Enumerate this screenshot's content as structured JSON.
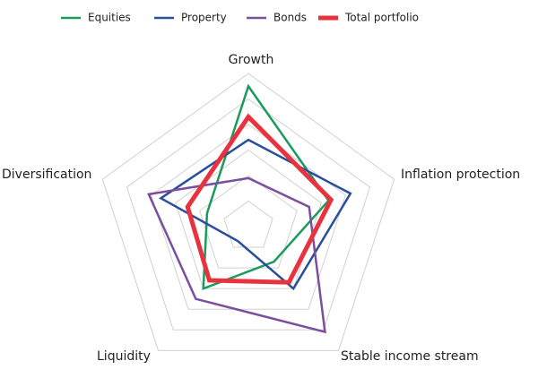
{
  "chart_data": {
    "type": "radar",
    "categories": [
      "Growth",
      "Inflation protection",
      "Stable income stream",
      "Liquidity",
      "Diversification"
    ],
    "series": [
      {
        "name": "Equities",
        "color": "#1a9a5c",
        "width": 2.5,
        "values": [
          5.5,
          3.3,
          1.7,
          3.0,
          1.7
        ]
      },
      {
        "name": "Property",
        "color": "#2a4f9a",
        "width": 2.5,
        "values": [
          3.4,
          4.2,
          3.0,
          0.7,
          3.6
        ]
      },
      {
        "name": "Bonds",
        "color": "#7b4fa0",
        "width": 2.5,
        "values": [
          1.9,
          2.5,
          5.1,
          3.5,
          4.1
        ]
      },
      {
        "name": "Total portfolio",
        "color": "#e8333f",
        "width": 5,
        "values": [
          4.3,
          3.4,
          2.7,
          2.6,
          2.5
        ]
      }
    ],
    "rlim": [
      0,
      6
    ],
    "rticks": [
      1,
      2,
      3,
      4,
      5,
      6
    ],
    "grid": true
  }
}
